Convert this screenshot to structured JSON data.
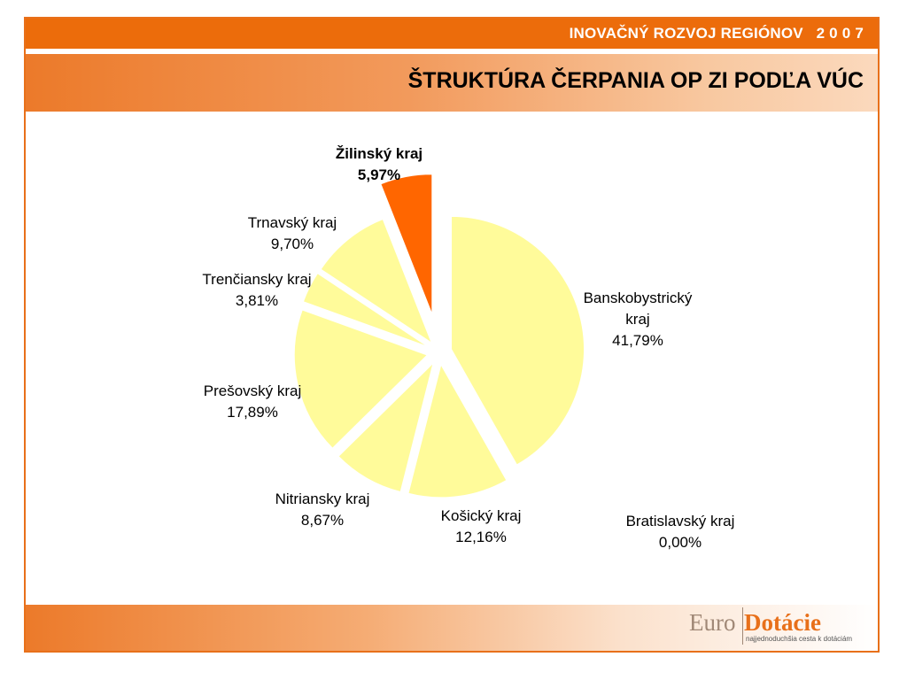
{
  "header": {
    "banner": "INOVAČNÝ ROZVOJ REGIÓNOV   2 0 0 7",
    "title": "ŠTRUKTÚRA ČERPANIA OP ZI PODĽA VÚC"
  },
  "colors": {
    "accent": "#ec6c0b",
    "slice_default": "#fffb9a",
    "slice_highlight": "#ff6600"
  },
  "chart_data": {
    "type": "pie",
    "title": "",
    "slices": [
      {
        "label_lines": [
          "Banskobystrický",
          "kraj"
        ],
        "value": 41.79,
        "value_text": "41,79%",
        "bold": false,
        "highlight": false
      },
      {
        "label_lines": [
          "Bratislavský kraj"
        ],
        "value": 0.0,
        "value_text": "0,00%",
        "bold": false,
        "highlight": false
      },
      {
        "label_lines": [
          "Košický kraj"
        ],
        "value": 12.16,
        "value_text": "12,16%",
        "bold": false,
        "highlight": false
      },
      {
        "label_lines": [
          "Nitriansky kraj"
        ],
        "value": 8.67,
        "value_text": "8,67%",
        "bold": false,
        "highlight": false
      },
      {
        "label_lines": [
          "Prešovský kraj"
        ],
        "value": 17.89,
        "value_text": "17,89%",
        "bold": false,
        "highlight": false
      },
      {
        "label_lines": [
          "Trenčiansky kraj"
        ],
        "value": 3.81,
        "value_text": "3,81%",
        "bold": false,
        "highlight": false
      },
      {
        "label_lines": [
          "Trnavský kraj"
        ],
        "value": 9.7,
        "value_text": "9,70%",
        "bold": false,
        "highlight": false
      },
      {
        "label_lines": [
          "Žilinský kraj"
        ],
        "value": 5.97,
        "value_text": "5,97%",
        "bold": true,
        "highlight": true
      }
    ]
  },
  "logo": {
    "word1": "Euro",
    "word2": "Dotácie",
    "tagline": "najjednoduchšia cesta k dotáciám"
  }
}
